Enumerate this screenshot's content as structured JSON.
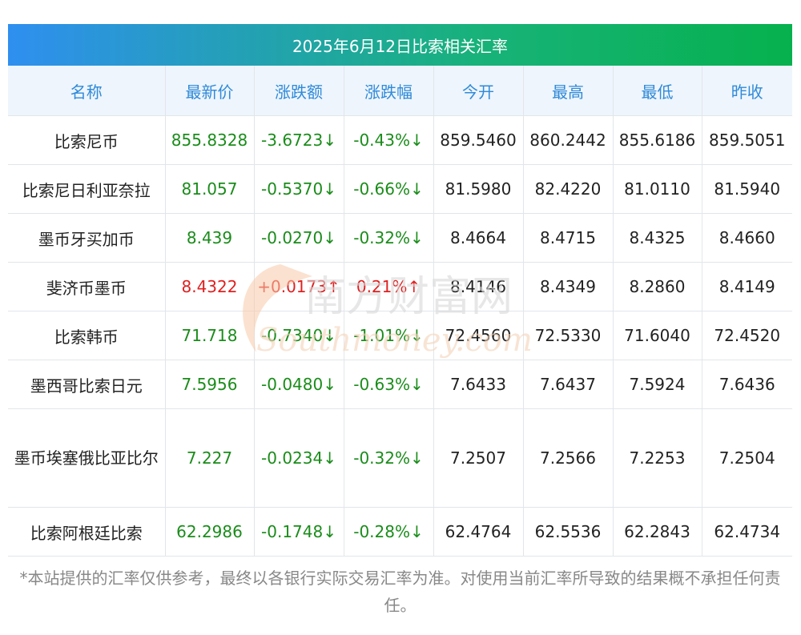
{
  "title": "2025年6月12日比索相关汇率",
  "headers": [
    "名称",
    "最新价",
    "涨跌额",
    "涨跌幅",
    "今开",
    "最高",
    "最低",
    "昨收"
  ],
  "rows": [
    {
      "name": "比索尼币",
      "latest": "855.8328",
      "change": "-3.6723",
      "pct": "-0.43%",
      "dir": "down",
      "open": "859.5460",
      "high": "860.2442",
      "low": "855.6186",
      "prev": "859.5051"
    },
    {
      "name": "比索尼日利亚奈拉",
      "latest": "81.057",
      "change": "-0.5370",
      "pct": "-0.66%",
      "dir": "down",
      "open": "81.5980",
      "high": "82.4220",
      "low": "81.0110",
      "prev": "81.5940"
    },
    {
      "name": "墨币牙买加币",
      "latest": "8.439",
      "change": "-0.0270",
      "pct": "-0.32%",
      "dir": "down",
      "open": "8.4664",
      "high": "8.4715",
      "low": "8.4325",
      "prev": "8.4660"
    },
    {
      "name": "斐济币墨币",
      "latest": "8.4322",
      "change": "+0.0173",
      "pct": "0.21%",
      "dir": "up",
      "open": "8.4146",
      "high": "8.4349",
      "low": "8.2860",
      "prev": "8.4149"
    },
    {
      "name": "比索韩币",
      "latest": "71.718",
      "change": "-0.7340",
      "pct": "-1.01%",
      "dir": "down",
      "open": "72.4560",
      "high": "72.5330",
      "low": "71.6040",
      "prev": "72.4520"
    },
    {
      "name": "墨西哥比索日元",
      "latest": "7.5956",
      "change": "-0.0480",
      "pct": "-0.63%",
      "dir": "down",
      "open": "7.6433",
      "high": "7.6437",
      "low": "7.5924",
      "prev": "7.6436"
    },
    {
      "name": "墨币埃塞俄比亚比尔",
      "latest": "7.227",
      "change": "-0.0234",
      "pct": "-0.32%",
      "dir": "down",
      "open": "7.2507",
      "high": "7.2566",
      "low": "7.2253",
      "prev": "7.2504",
      "wrap": true
    },
    {
      "name": "比索阿根廷比索",
      "latest": "62.2986",
      "change": "-0.1748",
      "pct": "-0.28%",
      "dir": "down",
      "open": "62.4764",
      "high": "62.5536",
      "low": "62.2843",
      "prev": "62.4734"
    }
  ],
  "arrows": {
    "down": "↓",
    "up": "↑"
  },
  "colors": {
    "down": "#1a8c1a",
    "up": "#e02020",
    "header_text": "#2f8ad8"
  },
  "watermark": {
    "cn": "南方财富网",
    "en": "Southmoney.com"
  },
  "footnote": "*本站提供的汇率仅供参考，最终以各银行实际交易汇率为准。对使用当前汇率所导致的结果概不承担任何责任。"
}
